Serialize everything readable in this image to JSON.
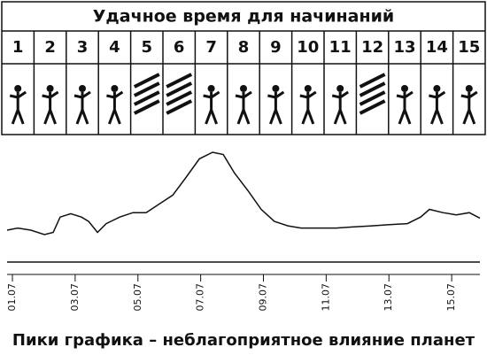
{
  "table": {
    "title": "Удачное время для начинаний",
    "days": [
      "1",
      "2",
      "3",
      "4",
      "5",
      "6",
      "7",
      "8",
      "9",
      "10",
      "11",
      "12",
      "13",
      "14",
      "15"
    ]
  },
  "chart_data": {
    "type": "line",
    "caption": "Пики графика – неблагоприятное влияние планет",
    "x": [
      0.83,
      1.17,
      1.59,
      2.02,
      2.3,
      2.52,
      2.86,
      3.2,
      3.43,
      3.71,
      3.99,
      4.42,
      4.84,
      5.26,
      5.69,
      6.11,
      6.53,
      6.96,
      7.38,
      7.72,
      8.08,
      8.51,
      8.93,
      9.35,
      9.78,
      10.2,
      10.77,
      11.33,
      11.89,
      12.46,
      13.02,
      13.59,
      14.01,
      14.29,
      14.72,
      15.15,
      15.56,
      15.9
    ],
    "series": [
      {
        "color": "#111111",
        "values": [
          29,
          31,
          29,
          25,
          27,
          41,
          44,
          41,
          37,
          27,
          35,
          41,
          45,
          45,
          53,
          61,
          77,
          94,
          100,
          98,
          81,
          65,
          48,
          37,
          33,
          31,
          31,
          31,
          32,
          33,
          34,
          35,
          41,
          48,
          45,
          43,
          45,
          40
        ]
      }
    ],
    "xlim": [
      0.83,
      15.9
    ],
    "ylim": [
      0,
      100
    ],
    "xticks": [
      {
        "value": 1,
        "label": "01.07"
      },
      {
        "value": 3,
        "label": "03.07"
      },
      {
        "value": 5,
        "label": "05.07"
      },
      {
        "value": 7,
        "label": "07.07"
      },
      {
        "value": 9,
        "label": "09.07"
      },
      {
        "value": 11,
        "label": "11.07"
      },
      {
        "value": 13,
        "label": "13.07"
      },
      {
        "value": 15,
        "label": "15.07"
      }
    ]
  }
}
